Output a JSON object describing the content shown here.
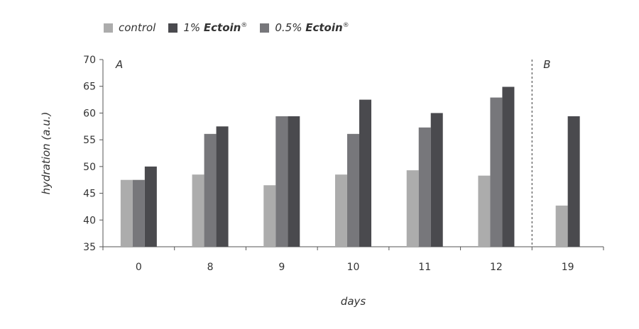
{
  "chart_data": {
    "type": "bar",
    "xlabel": "days",
    "ylabel": "hydration (a.u.)",
    "ylim": [
      35,
      70
    ],
    "yticks": [
      35,
      40,
      45,
      50,
      55,
      60,
      65,
      70
    ],
    "categories": [
      "0",
      "8",
      "9",
      "10",
      "11",
      "12",
      "19"
    ],
    "series": [
      {
        "name": "control",
        "color": "#acacac",
        "values": [
          47.5,
          48.5,
          46.5,
          48.5,
          49.3,
          48.3,
          42.7
        ]
      },
      {
        "name": "0.5% Ectoin®",
        "color": "#77777b",
        "values": [
          47.5,
          56.1,
          59.4,
          56.1,
          57.3,
          62.9,
          null
        ]
      },
      {
        "name": "1% Ectoin®",
        "color": "#4a4a4e",
        "values": [
          50.0,
          57.5,
          59.4,
          62.5,
          60.0,
          64.9,
          59.4
        ]
      }
    ],
    "legend": {
      "position": "top-left",
      "order": [
        "control",
        "1% Ectoin®",
        "0.5% Ectoin®"
      ],
      "items": [
        {
          "prefix": "control",
          "brand": "",
          "mark": "",
          "color": "#acacac"
        },
        {
          "prefix": "1% ",
          "brand": "Ectoin",
          "mark": "®",
          "color": "#4a4a4e"
        },
        {
          "prefix": "0.5% ",
          "brand": "Ectoin",
          "mark": "®",
          "color": "#77777b"
        }
      ]
    },
    "panel_labels": [
      "A",
      "B"
    ],
    "separator_after_category": "12",
    "grid": false
  }
}
